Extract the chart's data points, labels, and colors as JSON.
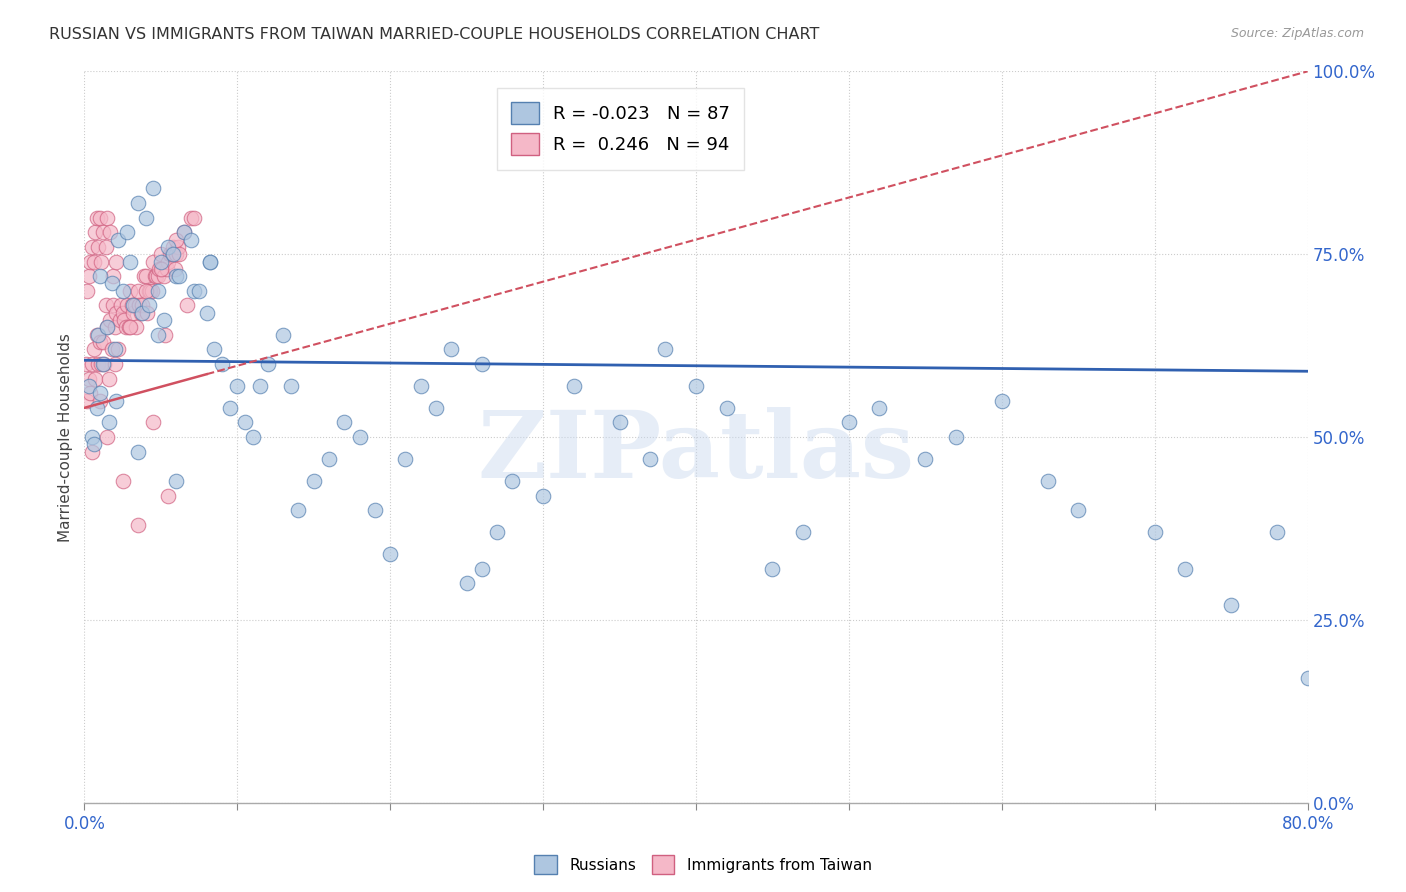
{
  "title": "RUSSIAN VS IMMIGRANTS FROM TAIWAN MARRIED-COUPLE HOUSEHOLDS CORRELATION CHART",
  "source": "Source: ZipAtlas.com",
  "ylabel": "Married-couple Households",
  "yaxis_labels": [
    "0.0%",
    "25.0%",
    "50.0%",
    "75.0%",
    "100.0%"
  ],
  "yaxis_values": [
    0,
    25,
    50,
    75,
    100
  ],
  "xlim": [
    0,
    80
  ],
  "ylim": [
    0,
    100
  ],
  "blue_label": "Russians",
  "pink_label": "Immigrants from Taiwan",
  "blue_R": "-0.023",
  "blue_N": "87",
  "pink_R": "0.246",
  "pink_N": "94",
  "blue_color": "#aec6e0",
  "pink_color": "#f5b8c8",
  "blue_edge_color": "#5580b0",
  "pink_edge_color": "#d06080",
  "blue_line_color": "#3060b0",
  "pink_line_color": "#d05060",
  "watermark": "ZIPatlas",
  "blue_line_y0": 60.5,
  "blue_line_y1": 59.0,
  "pink_line_y0": 54.0,
  "pink_line_y1": 100.0,
  "blue_scatter_x": [
    0.3,
    0.5,
    0.6,
    0.8,
    0.9,
    1.0,
    1.0,
    1.2,
    1.5,
    1.8,
    2.0,
    2.2,
    2.5,
    2.8,
    3.0,
    3.2,
    3.5,
    3.8,
    4.0,
    4.2,
    4.5,
    4.8,
    5.0,
    5.2,
    5.5,
    5.8,
    6.0,
    6.2,
    6.5,
    7.0,
    7.2,
    7.5,
    8.0,
    8.2,
    8.5,
    9.0,
    9.5,
    10.0,
    10.5,
    11.0,
    11.5,
    12.0,
    13.0,
    13.5,
    14.0,
    15.0,
    16.0,
    17.0,
    18.0,
    19.0,
    20.0,
    21.0,
    22.0,
    23.0,
    24.0,
    25.0,
    26.0,
    26.0,
    27.0,
    28.0,
    30.0,
    32.0,
    35.0,
    37.0,
    38.0,
    40.0,
    42.0,
    45.0,
    47.0,
    50.0,
    52.0,
    55.0,
    57.0,
    60.0,
    63.0,
    65.0,
    70.0,
    72.0,
    75.0,
    78.0,
    80.0,
    4.8,
    1.6,
    2.1,
    8.2,
    6.0,
    3.5
  ],
  "blue_scatter_y": [
    57,
    50,
    49,
    54,
    64,
    56,
    72,
    60,
    65,
    71,
    62,
    77,
    70,
    78,
    74,
    68,
    82,
    67,
    80,
    68,
    84,
    70,
    74,
    66,
    76,
    75,
    72,
    72,
    78,
    77,
    70,
    70,
    67,
    74,
    62,
    60,
    54,
    57,
    52,
    50,
    57,
    60,
    64,
    57,
    40,
    44,
    47,
    52,
    50,
    40,
    34,
    47,
    57,
    54,
    62,
    30,
    32,
    60,
    37,
    44,
    42,
    57,
    52,
    47,
    62,
    57,
    54,
    32,
    37,
    52,
    54,
    47,
    50,
    55,
    44,
    40,
    37,
    32,
    27,
    37,
    17,
    64,
    52,
    55,
    74,
    44,
    48
  ],
  "pink_scatter_x": [
    0.1,
    0.2,
    0.2,
    0.3,
    0.3,
    0.4,
    0.4,
    0.5,
    0.5,
    0.6,
    0.6,
    0.7,
    0.7,
    0.8,
    0.8,
    0.9,
    0.9,
    1.0,
    1.0,
    1.1,
    1.1,
    1.2,
    1.2,
    1.3,
    1.4,
    1.4,
    1.5,
    1.5,
    1.6,
    1.7,
    1.7,
    1.8,
    1.9,
    1.9,
    2.0,
    2.1,
    2.1,
    2.2,
    2.3,
    2.4,
    2.5,
    2.6,
    2.7,
    2.8,
    2.9,
    3.0,
    3.1,
    3.2,
    3.3,
    3.4,
    3.5,
    3.6,
    3.7,
    3.8,
    3.9,
    4.0,
    4.1,
    4.2,
    4.3,
    4.4,
    4.5,
    4.6,
    4.7,
    4.8,
    4.9,
    5.0,
    5.1,
    5.2,
    5.3,
    5.4,
    5.5,
    5.6,
    5.7,
    5.8,
    5.9,
    6.0,
    6.1,
    6.2,
    6.5,
    6.7,
    7.0,
    7.2,
    1.0,
    2.0,
    3.0,
    4.0,
    5.0,
    6.0,
    0.5,
    1.5,
    2.5,
    3.5,
    4.5,
    5.5
  ],
  "pink_scatter_y": [
    60,
    55,
    70,
    58,
    72,
    56,
    74,
    60,
    76,
    62,
    74,
    58,
    78,
    64,
    80,
    60,
    76,
    63,
    80,
    60,
    74,
    63,
    78,
    60,
    68,
    76,
    65,
    80,
    58,
    66,
    78,
    62,
    68,
    72,
    65,
    67,
    74,
    62,
    66,
    68,
    67,
    66,
    65,
    68,
    65,
    70,
    68,
    67,
    68,
    65,
    70,
    68,
    67,
    68,
    72,
    72,
    67,
    70,
    70,
    70,
    74,
    72,
    72,
    72,
    73,
    75,
    73,
    72,
    64,
    73,
    74,
    75,
    75,
    76,
    73,
    75,
    76,
    75,
    78,
    68,
    80,
    80,
    55,
    60,
    65,
    70,
    73,
    77,
    48,
    50,
    44,
    38,
    52,
    42
  ]
}
